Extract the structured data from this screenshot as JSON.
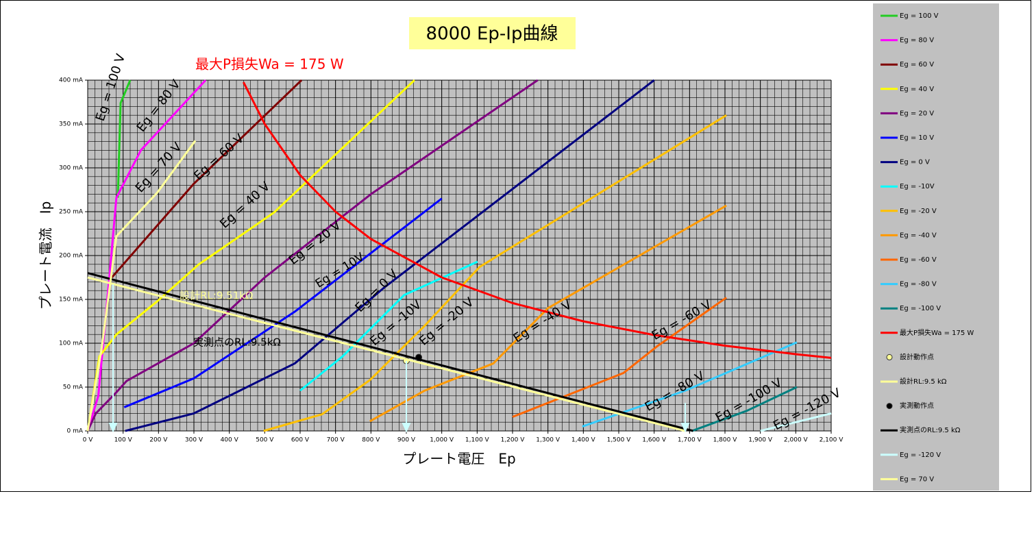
{
  "chart_data": {
    "type": "line",
    "title": "8000  Ep-Ip曲線",
    "x_label": "プレート電圧　Ep",
    "y_label": "プレート電流　Ip",
    "xlim": [
      0,
      2100
    ],
    "ylim": [
      0,
      400
    ],
    "minor_grid": {
      "x": 20,
      "y": 10
    },
    "xticks": [
      {
        "value": 0,
        "label": "0 V"
      },
      {
        "value": 100,
        "label": "100 V"
      },
      {
        "value": 200,
        "label": "200 V"
      },
      {
        "value": 300,
        "label": "300 V"
      },
      {
        "value": 400,
        "label": "400 V"
      },
      {
        "value": 500,
        "label": "500 V"
      },
      {
        "value": 600,
        "label": "600 V"
      },
      {
        "value": 700,
        "label": "700 V"
      },
      {
        "value": 800,
        "label": "800 V"
      },
      {
        "value": 900,
        "label": "900 V"
      },
      {
        "value": 1000,
        "label": "1,000 V"
      },
      {
        "value": 1100,
        "label": "1,100 V"
      },
      {
        "value": 1200,
        "label": "1,200 V"
      },
      {
        "value": 1300,
        "label": "1,300 V"
      },
      {
        "value": 1400,
        "label": "1,400 V"
      },
      {
        "value": 1500,
        "label": "1,500 V"
      },
      {
        "value": 1600,
        "label": "1,600 V"
      },
      {
        "value": 1700,
        "label": "1,700 V"
      },
      {
        "value": 1800,
        "label": "1,800 V"
      },
      {
        "value": 1900,
        "label": "1,900 V"
      },
      {
        "value": 2000,
        "label": "2,000 V"
      },
      {
        "value": 2100,
        "label": "2,100 V"
      }
    ],
    "yticks": [
      {
        "value": 0,
        "label": "0 mA"
      },
      {
        "value": 50,
        "label": "50 mA"
      },
      {
        "value": 100,
        "label": "100 mA"
      },
      {
        "value": 150,
        "label": "150 mA"
      },
      {
        "value": 200,
        "label": "200 mA"
      },
      {
        "value": 250,
        "label": "250 mA"
      },
      {
        "value": 300,
        "label": "300 mA"
      },
      {
        "value": 350,
        "label": "350 mA"
      },
      {
        "value": 400,
        "label": "400 mA"
      }
    ],
    "series": [
      {
        "name": "Eg  =  100 V",
        "color": "#22cc22",
        "x": [
          85,
          93,
          120
        ],
        "values": [
          266,
          374,
          400
        ]
      },
      {
        "name": "Eg  =  80 V",
        "color": "#ff00ff",
        "x": [
          0,
          30,
          60,
          81,
          150,
          333
        ],
        "values": [
          0,
          40,
          170,
          266,
          320,
          400
        ]
      },
      {
        "name": "Eg  =  60 V",
        "color": "#800000",
        "x": [
          68,
          300,
          604
        ],
        "values": [
          175,
          282,
          400
        ]
      },
      {
        "name": "Eg  =  40 V",
        "color": "#ffff00",
        "x": [
          0,
          33,
          81,
          197,
          314,
          526,
          923
        ],
        "values": [
          0,
          85,
          110,
          148,
          190,
          249,
          400
        ]
      },
      {
        "name": "Eg  =  20 V",
        "color": "#800080",
        "x": [
          0,
          23,
          81,
          110,
          300,
          500,
          800,
          1271
        ],
        "values": [
          0,
          20,
          44,
          57,
          100,
          175,
          270,
          400
        ]
      },
      {
        "name": "Eg  =  10 V",
        "color": "#0000ff",
        "x": [
          103,
          300,
          585,
          1000
        ],
        "values": [
          27,
          60,
          136,
          265
        ]
      },
      {
        "name": "Eg  =  0 V",
        "color": "#000080",
        "x": [
          106,
          300,
          585,
          836,
          1600
        ],
        "values": [
          0,
          20,
          77,
          163,
          400
        ]
      },
      {
        "name": "Eg  =  -10V",
        "color": "#00ffff",
        "x": [
          600,
          720,
          894,
          1101
        ],
        "values": [
          46,
          85,
          155,
          193
        ]
      },
      {
        "name": "Eg = -20 V",
        "color": "#ffc000",
        "x": [
          497,
          662,
          797,
          952,
          1107,
          1804
        ],
        "values": [
          0,
          19,
          58,
          120,
          187,
          360
        ]
      },
      {
        "name": "Eg = -40 V",
        "color": "#ff9900",
        "x": [
          797,
          952,
          1146,
          1300,
          1804
        ],
        "values": [
          11,
          46,
          77,
          140,
          257
        ]
      },
      {
        "name": "Eg = -60 V",
        "color": "#ff6600",
        "x": [
          1200,
          1513,
          1610,
          1804
        ],
        "values": [
          16,
          66,
          97,
          152
        ]
      },
      {
        "name": "Eg = -80 V",
        "color": "#33ccff",
        "x": [
          1397,
          1688,
          2003
        ],
        "values": [
          5,
          46,
          101
        ]
      },
      {
        "name": "Eg = -100 V",
        "color": "#008080",
        "x": [
          1707,
          1862,
          2003
        ],
        "values": [
          0,
          23,
          50
        ]
      },
      {
        "name": "最大P損失Wa = 175  W",
        "color": "#ff0000",
        "x": [
          440,
          500,
          600,
          700,
          800,
          1000,
          1200,
          1400,
          1600,
          1800,
          2000,
          2100
        ],
        "values": [
          397.7,
          350,
          291.7,
          250,
          218.8,
          175,
          145.8,
          125,
          109.4,
          97.2,
          87.5,
          83.3
        ]
      },
      {
        "name": "設計動作点",
        "color": "#ffff99",
        "marker": true,
        "x": [
          900
        ],
        "values": [
          80
        ]
      },
      {
        "name": "設計RL:9.5 kΩ",
        "color": "#ffff99",
        "x": [
          0,
          1688
        ],
        "values": [
          175,
          0
        ]
      },
      {
        "name": "実測動作点",
        "color": "#000000",
        "marker": true,
        "x": [
          935
        ],
        "values": [
          84
        ]
      },
      {
        "name": "実測点のRL:9.5 kΩ",
        "color": "#000000",
        "x": [
          0,
          1710
        ],
        "values": [
          180,
          0
        ]
      },
      {
        "name": "Eg = -120 V",
        "color": "#ccffff",
        "x": [
          1900,
          2100
        ],
        "values": [
          0,
          20
        ]
      },
      {
        "name": "Eg  =  70 V",
        "color": "#ffff99",
        "x": [
          0,
          39,
          81,
          197,
          304
        ],
        "values": [
          0,
          93,
          222,
          272,
          331
        ]
      }
    ],
    "annotations": [
      "Eg = 100 V",
      "Eg = 80 V",
      "Eg = 70 V",
      "Eg = 60 V",
      "Eg = 40 V",
      "Eg = 20 V",
      "Eg = 10V",
      "Eg = 0 V",
      "Eg = -10V",
      "Eg = -20 V",
      "Eg = -40 V",
      "Eg = -60 V",
      "Eg = -80 V",
      "Eg = -100 V",
      "Eg = -120 V",
      "最大P損失Wa = 175  W",
      "設計RL:9.51kΩ",
      "実測点のRL:9.5kΩ"
    ]
  }
}
